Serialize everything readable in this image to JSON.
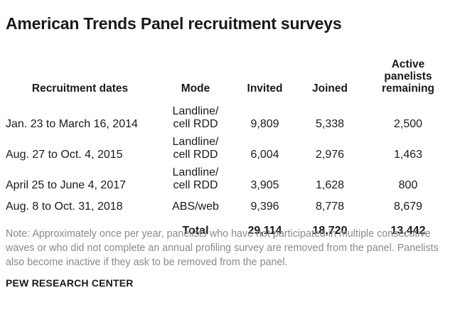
{
  "title": "American Trends Panel recruitment surveys",
  "table": {
    "headers": {
      "dates": "Recruitment dates",
      "mode": "Mode",
      "invited": "Invited",
      "joined": "Joined",
      "active_line1": "Active",
      "active_line2": "panelists",
      "active_line3": "remaining"
    },
    "rows": [
      {
        "dates": "Jan. 23 to March 16, 2014",
        "mode_line1": "Landline/",
        "mode_line2": "cell RDD",
        "invited": "9,809",
        "joined": "5,338",
        "active": "2,500"
      },
      {
        "dates": "Aug. 27 to Oct. 4, 2015",
        "mode_line1": "Landline/",
        "mode_line2": "cell RDD",
        "invited": "6,004",
        "joined": "2,976",
        "active": "1,463"
      },
      {
        "dates": "April 25 to June 4, 2017",
        "mode_line1": "Landline/",
        "mode_line2": "cell RDD",
        "invited": "3,905",
        "joined": "1,628",
        "active": "800"
      },
      {
        "dates": "Aug. 8 to Oct. 31, 2018",
        "mode_line1": "ABS/web",
        "mode_line2": "",
        "invited": "9,396",
        "joined": "8,778",
        "active": "8,679"
      }
    ],
    "total": {
      "label": "Total",
      "invited": "29,114",
      "joined": "18,720",
      "active": "13,442"
    }
  },
  "note": "Note: Approximately once per year, panelists who have not participated in multiple consecutive waves or who did not complete an annual profiling survey are removed from the panel. Panelists also become inactive if they ask to be removed from the panel.",
  "source": "PEW RESEARCH CENTER"
}
